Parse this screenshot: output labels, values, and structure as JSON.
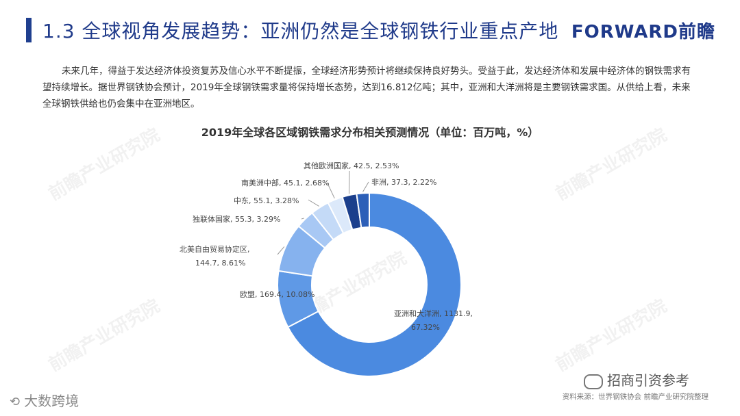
{
  "header": {
    "title": "1.3  全球视角发展趋势：亚洲仍然是全球钢铁行业重点产地",
    "logo_en": "FORWARD",
    "logo_zh": "前瞻"
  },
  "intro": "未来几年，得益于发达经济体投资复苏及信心水平不断提振，全球经济形势预计将继续保持良好势头。受益于此，发达经济体和发展中经济体的钢铁需求有望持续增长。据世界钢铁协会预计，2019年全球钢铁需求量将保持增长态势，达到16.812亿吨；其中，亚洲和大洋洲将是主要钢铁需求国。从供给上看，未来全球钢铁供给也仍会集中在亚洲地区。",
  "chart_data": {
    "type": "pie",
    "donut": true,
    "title": "2019年全球各区域钢铁需求分布相关预测情况（单位：百万吨，%）",
    "slices": [
      {
        "name": "亚洲和大洋洲",
        "value": 1131.9,
        "percent": "67.32%",
        "color": "#4b8ae0"
      },
      {
        "name": "欧盟",
        "value": 169.4,
        "percent": "10.08%",
        "color": "#5f99e6"
      },
      {
        "name": "北美自由贸易协定区",
        "value": 144.7,
        "percent": "8.61%",
        "color": "#86b2ee"
      },
      {
        "name": "独联体国家",
        "value": 55.3,
        "percent": "3.29%",
        "color": "#a8c8f4"
      },
      {
        "name": "中东",
        "value": 55.1,
        "percent": "3.28%",
        "color": "#c4daf7"
      },
      {
        "name": "南美洲中部",
        "value": 45.1,
        "percent": "2.68%",
        "color": "#dce9fa"
      },
      {
        "name": "其他欧洲国家",
        "value": 42.5,
        "percent": "2.53%",
        "color": "#1b3f8c"
      },
      {
        "name": "非洲",
        "value": 37.3,
        "percent": "2.22%",
        "color": "#2c5fb8"
      }
    ]
  },
  "labels": {
    "asia": "亚洲和大洋洲, 1131.9,",
    "asia_pct": "67.32%",
    "eu": "欧盟, 169.4, 10.08%",
    "nafta": "北美自由贸易协定区,",
    "nafta_val": "144.7, 8.61%",
    "cis": "独联体国家, 55.3, 3.29%",
    "me": "中东, 55.1, 3.28%",
    "sa": "南美洲中部, 45.1, 2.68%",
    "oe": "其他欧洲国家, 42.5, 2.53%",
    "af": "非洲, 37.3, 2.22%"
  },
  "source": "资料来源：世界钢铁协会 前瞻产业研究院整理",
  "wechat": "招商引资参考",
  "footer_logo": "大数跨境"
}
